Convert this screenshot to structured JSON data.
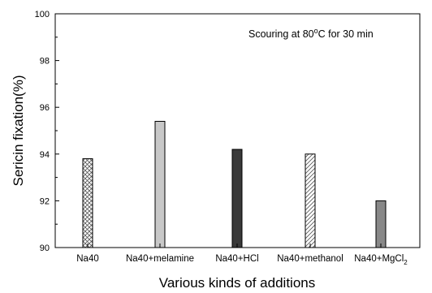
{
  "chart_data": {
    "type": "bar",
    "title": "",
    "annotation": {
      "prefix": "Scouring at 80",
      "superscript": "o",
      "suffix": "C for 30 min"
    },
    "xlabel": "Various kinds of additions",
    "ylabel": "Sericin fixation(%)",
    "ylim": [
      90,
      100
    ],
    "yticks": [
      "90",
      "92",
      "94",
      "96",
      "98",
      "100"
    ],
    "categories": [
      {
        "label": "Na40",
        "sub": ""
      },
      {
        "label": "Na40+melamine",
        "sub": ""
      },
      {
        "label": "Na40+HCl",
        "sub": ""
      },
      {
        "label": "Na40+methanol",
        "sub": ""
      },
      {
        "label": "Na40+MgCl",
        "sub": "2"
      }
    ],
    "values": [
      93.8,
      95.4,
      94.2,
      94.0,
      92.0
    ],
    "bar_styles": [
      {
        "fill": "crosshatch",
        "color": "#555555"
      },
      {
        "fill": "solid",
        "color": "#c8c8c8"
      },
      {
        "fill": "solid",
        "color": "#3a3a3a"
      },
      {
        "fill": "diagonal",
        "color": "#555555"
      },
      {
        "fill": "solid",
        "color": "#888888"
      }
    ],
    "grid": false
  }
}
